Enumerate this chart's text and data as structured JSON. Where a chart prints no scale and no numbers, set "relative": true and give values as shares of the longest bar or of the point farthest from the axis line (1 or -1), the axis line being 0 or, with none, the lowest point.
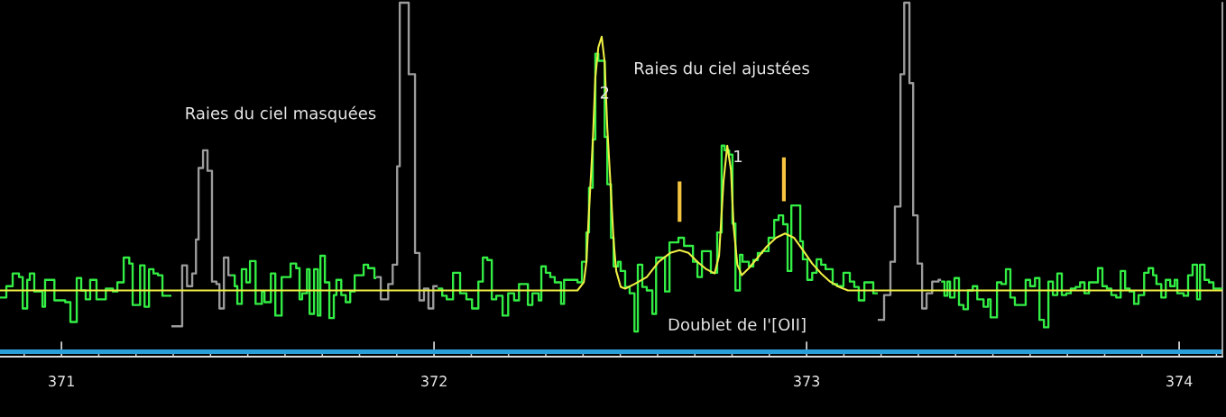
{
  "chart_data": {
    "type": "step",
    "relative": true,
    "xlim": [
      370.835,
      374.116
    ],
    "xticks": [
      {
        "value": 370.9,
        "label": null
      },
      371,
      {
        "value": 371.1,
        "label": null
      },
      {
        "value": 371.2,
        "label": null
      },
      {
        "value": 371.3,
        "label": null
      },
      {
        "value": 371.4,
        "label": null
      },
      {
        "value": 371.5,
        "label": null
      },
      {
        "value": 371.6,
        "label": null
      },
      {
        "value": 371.7,
        "label": null
      },
      {
        "value": 371.8,
        "label": null
      },
      {
        "value": 371.9,
        "label": null
      },
      372,
      {
        "value": 372.1,
        "label": null
      },
      {
        "value": 372.2,
        "label": null
      },
      {
        "value": 372.3,
        "label": null
      },
      {
        "value": 372.4,
        "label": null
      },
      {
        "value": 372.5,
        "label": null
      },
      {
        "value": 372.6,
        "label": null
      },
      {
        "value": 372.7,
        "label": null
      },
      {
        "value": 372.8,
        "label": null
      },
      {
        "value": 372.9,
        "label": null
      },
      373,
      {
        "value": 373.1,
        "label": null
      },
      {
        "value": 373.2,
        "label": null
      },
      {
        "value": 373.3,
        "label": null
      },
      {
        "value": 373.4,
        "label": null
      },
      {
        "value": 373.5,
        "label": null
      },
      {
        "value": 373.6,
        "label": null
      },
      {
        "value": 373.7,
        "label": null
      },
      {
        "value": 373.8,
        "label": null
      },
      {
        "value": 373.9,
        "label": null
      },
      374,
      {
        "value": 374.1,
        "label": null
      }
    ],
    "series": [
      {
        "color": "#33ee44",
        "x": [
          370.835,
          370.852,
          370.869,
          370.886,
          370.896,
          370.908,
          370.915,
          370.927,
          370.949,
          370.956,
          370.981,
          371.01,
          371.024,
          371.041,
          371.053,
          371.065,
          371.077,
          371.094,
          371.119,
          371.138,
          371.15,
          371.167,
          371.182,
          371.191,
          371.211,
          371.223,
          371.235,
          371.247,
          371.259,
          371.271,
          371.295
        ],
        "values": [
          0.167,
          0.199,
          0.235,
          0.225,
          0.136,
          0.217,
          0.235,
          0.184,
          0.141,
          0.217,
          0.159,
          0.154,
          0.098,
          0.222,
          0.187,
          0.162,
          0.217,
          0.162,
          0.192,
          0.184,
          0.21,
          0.28,
          0.263,
          0.146,
          0.258,
          0.141,
          0.247,
          0.235,
          0.23,
          0.172,
          0.172
        ]
      },
      {
        "color": "#33ee44",
        "x": [
          371.455,
          371.465,
          371.472,
          371.484,
          371.496,
          371.506,
          371.521,
          371.538,
          371.545,
          371.562,
          371.574,
          371.591,
          371.615,
          371.63,
          371.639,
          371.646,
          371.659,
          371.666,
          371.678,
          371.688,
          371.695,
          371.707,
          371.719,
          371.731,
          371.738,
          371.751,
          371.763,
          371.775,
          371.787,
          371.811,
          371.823,
          371.84,
          371.845
        ],
        "values": [
          0.23,
          0.199,
          0.149,
          0.247,
          0.21,
          0.27,
          0.149,
          0.184,
          0.154,
          0.235,
          0.116,
          0.225,
          0.263,
          0.25,
          0.162,
          0.179,
          0.247,
          0.121,
          0.247,
          0.116,
          0.285,
          0.21,
          0.109,
          0.174,
          0.217,
          0.174,
          0.154,
          0.184,
          0.23,
          0.26,
          0.25,
          0.222,
          0.222
        ]
      },
      {
        "color": "#33ee44",
        "x": [
          372.01,
          372.022,
          372.034,
          372.051,
          372.07,
          372.087,
          372.102,
          372.119,
          372.131,
          372.143,
          372.155,
          372.167,
          372.184,
          372.199,
          372.215,
          372.228,
          372.252,
          372.264,
          372.281,
          372.288,
          372.3,
          372.312,
          372.324,
          372.341,
          372.349,
          372.385,
          372.397,
          372.409,
          372.416,
          372.426,
          372.433,
          372.441,
          372.458,
          372.465,
          372.475,
          372.482,
          372.494,
          372.501,
          372.513,
          372.525,
          372.538,
          372.547,
          372.559,
          372.571,
          372.586,
          372.596,
          372.62,
          372.632,
          372.656,
          372.671,
          372.695,
          372.707,
          372.719,
          372.743,
          372.76,
          372.772,
          372.78,
          372.792,
          372.801,
          372.809,
          372.821,
          372.828,
          372.845,
          372.857,
          372.869,
          372.881,
          372.898,
          372.913,
          372.925,
          372.937,
          372.949,
          372.959,
          372.983,
          372.99,
          373.002,
          373.015,
          373.027,
          373.039,
          373.051,
          373.07,
          373.082,
          373.099,
          373.116,
          373.128,
          373.14,
          373.155,
          373.179,
          373.191
        ],
        "values": [
          0.192,
          0.172,
          0.162,
          0.237,
          0.179,
          0.162,
          0.136,
          0.212,
          0.28,
          0.273,
          0.162,
          0.172,
          0.116,
          0.179,
          0.159,
          0.205,
          0.146,
          0.179,
          0.159,
          0.255,
          0.237,
          0.225,
          0.21,
          0.149,
          0.217,
          0.21,
          0.268,
          0.351,
          0.477,
          0.614,
          0.856,
          0.836,
          0.621,
          0.487,
          0.336,
          0.255,
          0.268,
          0.242,
          0.197,
          0.179,
          0.071,
          0.26,
          0.197,
          0.187,
          0.121,
          0.28,
          0.184,
          0.323,
          0.336,
          0.313,
          0.268,
          0.225,
          0.298,
          0.237,
          0.351,
          0.596,
          0.583,
          0.571,
          0.376,
          0.187,
          0.288,
          0.268,
          0.255,
          0.273,
          0.293,
          0.298,
          0.336,
          0.386,
          0.399,
          0.374,
          0.242,
          0.427,
          0.326,
          0.275,
          0.217,
          0.237,
          0.275,
          0.26,
          0.247,
          0.205,
          0.199,
          0.237,
          0.212,
          0.197,
          0.159,
          0.21,
          0.179,
          0.179
        ]
      },
      {
        "color": "#33ee44",
        "x": [
          373.361,
          373.37,
          373.378,
          373.385,
          373.397,
          373.409,
          373.421,
          373.433,
          373.446,
          373.458,
          373.475,
          373.487,
          373.494,
          373.511,
          373.523,
          373.535,
          373.547,
          373.559,
          373.588,
          373.6,
          373.613,
          373.625,
          373.637,
          373.649,
          373.661,
          373.673,
          373.685,
          373.697,
          373.709,
          373.722,
          373.734,
          373.746,
          373.758,
          373.782,
          373.794,
          373.806,
          373.818,
          373.831,
          373.843,
          373.855,
          373.867,
          373.879,
          373.891,
          373.906,
          373.918,
          373.93,
          373.939,
          373.952,
          373.964,
          373.976,
          373.988,
          373.995,
          374.012,
          374.024,
          374.036,
          374.048,
          374.056,
          374.068,
          374.08,
          374.092,
          374.116
        ],
        "values": [
          0.212,
          0.172,
          0.212,
          0.167,
          0.222,
          0.146,
          0.134,
          0.187,
          0.199,
          0.162,
          0.141,
          0.162,
          0.111,
          0.21,
          0.205,
          0.247,
          0.167,
          0.146,
          0.217,
          0.199,
          0.222,
          0.104,
          0.083,
          0.212,
          0.174,
          0.235,
          0.174,
          0.179,
          0.192,
          0.197,
          0.21,
          0.179,
          0.21,
          0.25,
          0.199,
          0.192,
          0.174,
          0.167,
          0.242,
          0.192,
          0.184,
          0.149,
          0.174,
          0.237,
          0.25,
          0.23,
          0.205,
          0.167,
          0.217,
          0.199,
          0.217,
          0.179,
          0.172,
          0.23,
          0.26,
          0.162,
          0.26,
          0.217,
          0.21,
          0.192,
          0.192
        ]
      },
      {
        "color": "#9c9c9c",
        "x": [
          371.295,
          371.324,
          371.337,
          371.351,
          371.361,
          371.368,
          371.38,
          371.392,
          371.404,
          371.416,
          371.424,
          371.436,
          371.448,
          371.455
        ],
        "values": [
          0.086,
          0.258,
          0.199,
          0.235,
          0.331,
          0.533,
          0.583,
          0.525,
          0.212,
          0.205,
          0.136,
          0.28,
          0.23,
          0.23
        ]
      },
      {
        "color": "#9c9c9c",
        "x": [
          371.845,
          371.857,
          371.877,
          371.889,
          371.901,
          371.908,
          371.932,
          371.949,
          371.961,
          371.973,
          371.985,
          371.998,
          372.01
        ],
        "values": [
          0.225,
          0.162,
          0.205,
          0.26,
          0.538,
          1.0,
          0.798,
          0.293,
          0.159,
          0.192,
          0.136,
          0.199,
          0.199
        ]
      },
      {
        "color": "#9c9c9c",
        "x": [
          373.191,
          373.208,
          373.225,
          373.237,
          373.252,
          373.262,
          373.276,
          373.286,
          373.298,
          373.31,
          373.322,
          373.337,
          373.354,
          373.361
        ],
        "values": [
          0.104,
          0.174,
          0.268,
          0.424,
          0.798,
          1.0,
          0.773,
          0.399,
          0.263,
          0.136,
          0.179,
          0.212,
          0.217,
          0.217
        ]
      },
      {
        "type": "line",
        "color": "#eeee44",
        "x": [
          370.835,
          372.361,
          372.385,
          372.402,
          372.409,
          372.416,
          372.426,
          372.433,
          372.441,
          372.45,
          372.458,
          372.465,
          372.475,
          372.482,
          372.489,
          372.501,
          372.513,
          372.538,
          372.571,
          372.603,
          372.634,
          372.659,
          372.683,
          372.707,
          372.731,
          372.753,
          372.765,
          372.777,
          372.787,
          372.797,
          372.804,
          372.814,
          372.826,
          372.845,
          372.869,
          372.893,
          372.918,
          372.942,
          372.966,
          372.99,
          373.015,
          373.039,
          373.063,
          373.087,
          373.111,
          374.116
        ],
        "values": [
          0.187,
          0.187,
          0.187,
          0.21,
          0.268,
          0.412,
          0.604,
          0.79,
          0.874,
          0.904,
          0.831,
          0.646,
          0.462,
          0.326,
          0.242,
          0.197,
          0.192,
          0.205,
          0.225,
          0.268,
          0.293,
          0.301,
          0.293,
          0.268,
          0.247,
          0.235,
          0.285,
          0.495,
          0.596,
          0.528,
          0.369,
          0.26,
          0.23,
          0.25,
          0.28,
          0.311,
          0.336,
          0.348,
          0.336,
          0.301,
          0.263,
          0.235,
          0.212,
          0.197,
          0.187,
          0.187
        ]
      },
      {
        "type": "line",
        "color": "#f5c542",
        "x": [
          372.659,
          372.659
        ],
        "values": [
          0.381,
          0.495
        ]
      },
      {
        "type": "line",
        "color": "#f5c542",
        "x": [
          372.939,
          372.939
        ],
        "values": [
          0.439,
          0.563
        ]
      }
    ],
    "ref_lines": [
      {
        "axis": "y",
        "value": 0.014,
        "color": "#2b9fd8"
      }
    ],
    "annotations": [
      "Raies du ciel masquées",
      "Raies du ciel ajustées",
      {
        "text": "2",
        "x": 372.458,
        "y": 0.742
      },
      "1",
      "Doublet de l'[OII]"
    ]
  }
}
